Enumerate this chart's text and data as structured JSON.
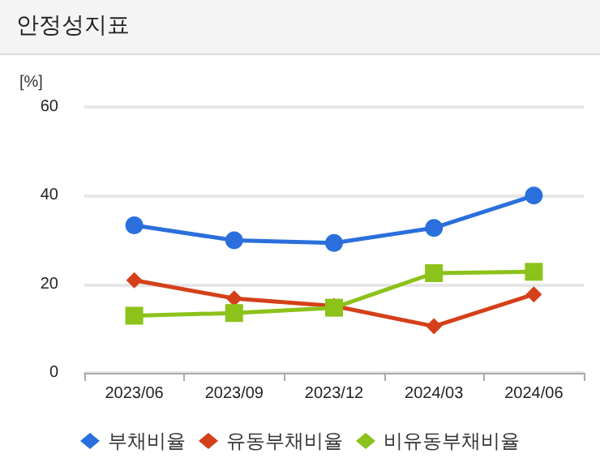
{
  "chart_data": {
    "type": "line",
    "title": "안정성지표",
    "ylabel": "[%]",
    "categories": [
      "2023/06",
      "2023/09",
      "2023/12",
      "2024/03",
      "2024/06"
    ],
    "series": [
      {
        "name": "부채비율",
        "color": "#2a6fdb",
        "marker": "circle",
        "values": [
          33.3,
          29.9,
          29.3,
          32.7,
          40
        ]
      },
      {
        "name": "유동부채비율",
        "color": "#d4401a",
        "marker": "diamond",
        "values": [
          20.9,
          16.8,
          15.1,
          10.5,
          17.7
        ]
      },
      {
        "name": "비유동부채비율",
        "color": "#8cc21a",
        "marker": "square",
        "values": [
          12.9,
          13.5,
          14.7,
          22.5,
          22.8
        ]
      }
    ],
    "ylim": [
      0,
      60
    ],
    "yticks": [
      0,
      20,
      40,
      60
    ],
    "grid": "y",
    "legend": "bottom"
  }
}
